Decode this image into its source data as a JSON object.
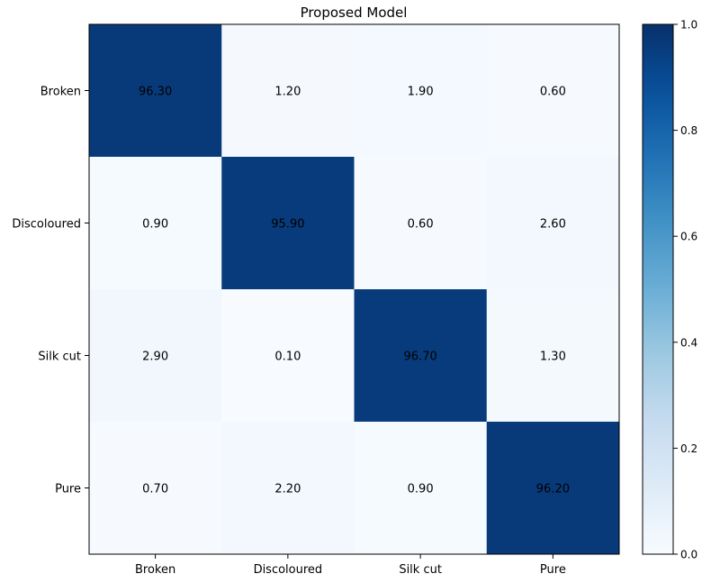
{
  "chart_data": {
    "type": "heatmap",
    "title": "Proposed Model",
    "rows": [
      "Broken",
      "Discoloured",
      "Silk cut",
      "Pure"
    ],
    "columns": [
      "Broken",
      "Discoloured",
      "Silk cut",
      "Pure"
    ],
    "values": [
      [
        96.3,
        1.2,
        1.9,
        0.6
      ],
      [
        0.9,
        95.9,
        0.6,
        2.6
      ],
      [
        2.9,
        0.1,
        96.7,
        1.3
      ],
      [
        0.7,
        2.2,
        0.9,
        96.2
      ]
    ],
    "cell_labels": [
      [
        "96.30",
        "1.20",
        "1.90",
        "0.60"
      ],
      [
        "0.90",
        "95.90",
        "0.60",
        "2.60"
      ],
      [
        "2.90",
        "0.10",
        "96.70",
        "1.30"
      ],
      [
        "0.70",
        "2.20",
        "0.90",
        "96.20"
      ]
    ],
    "colorbar": {
      "range": [
        0.0,
        1.0
      ],
      "ticks": [
        "0.0",
        "0.2",
        "0.4",
        "0.6",
        "0.8",
        "1.0"
      ],
      "colormap": "Blues"
    },
    "grid": false
  }
}
